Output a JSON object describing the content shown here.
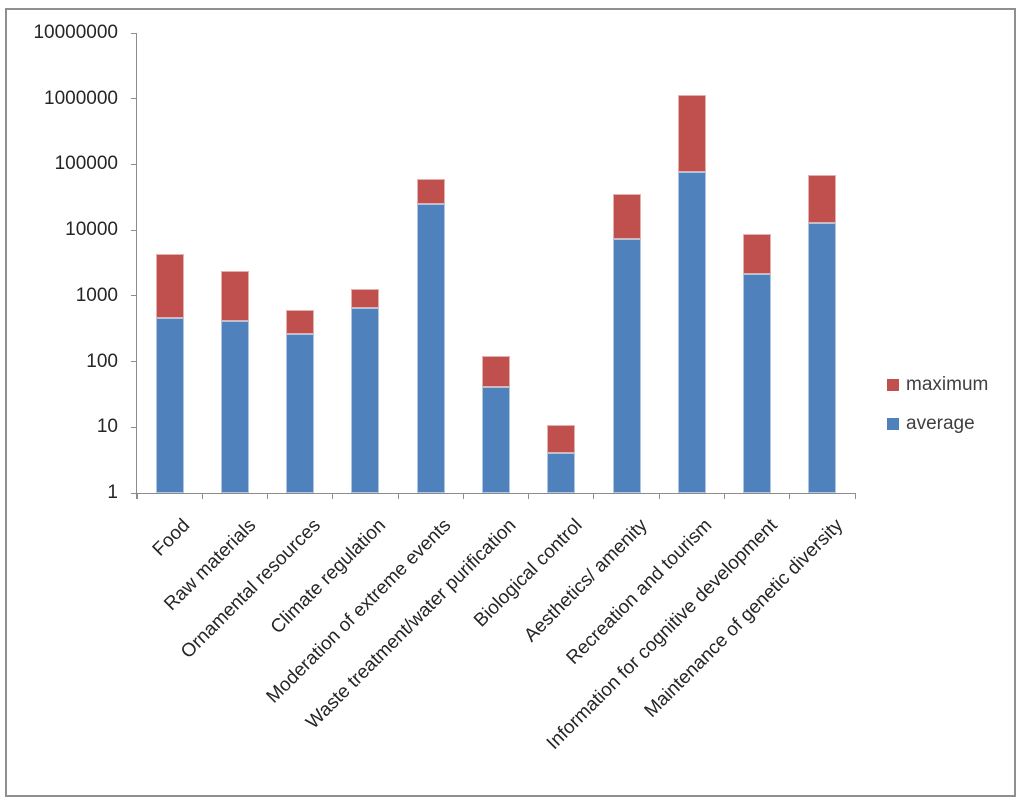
{
  "chart_data": {
    "type": "bar",
    "variant": "stacked",
    "y_scale": "log10",
    "title": "",
    "xlabel": "",
    "ylabel": "",
    "grid": false,
    "categories": [
      "Food",
      "Raw materials",
      "Ornamental resources",
      "Climate regulation",
      "Moderation of extreme events",
      "Waste treatment/water purification",
      "Biological control",
      "Aesthetics/ amenity",
      "Recreation and tourism",
      "Information for cognitive development",
      "Maintenance of genetic diversity"
    ],
    "series": [
      {
        "name": "average",
        "color": "#4F81BD",
        "values": [
          460,
          420,
          260,
          650,
          25000,
          41,
          4,
          7300,
          78000,
          2150,
          13000
        ]
      },
      {
        "name": "maximum",
        "color": "#C0504D",
        "values": [
          4300,
          2400,
          610,
          1270,
          60000,
          120,
          11,
          35000,
          1150000,
          8700,
          70000
        ]
      }
    ],
    "ylim": [
      1,
      10000000
    ],
    "y_tick_labels": [
      "1",
      "10",
      "100",
      "1000",
      "10000",
      "100000",
      "1000000",
      "10000000"
    ],
    "legend": {
      "position": "right",
      "entries": [
        {
          "label": "maximum",
          "color": "#C0504D"
        },
        {
          "label": "average",
          "color": "#4F81BD"
        }
      ]
    },
    "style": {
      "axis_color": "#8c8c8c",
      "tick_label_color": "#262626",
      "legend_text_color": "#404040",
      "frame_border_color": "#8f8f8f"
    }
  }
}
